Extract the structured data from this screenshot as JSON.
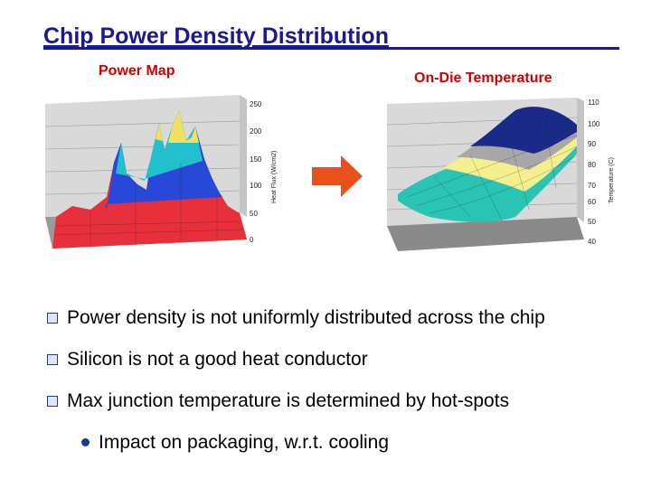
{
  "slide": {
    "title": "Chip Power Density Distribution"
  },
  "left_figure": {
    "caption": "Power Map",
    "axis_title": "Heat Flux (W/cm2)",
    "ticks": [
      "250",
      "200",
      "150",
      "100",
      "50",
      "0"
    ]
  },
  "right_figure": {
    "caption": "On-Die Temperature",
    "axis_title": "Temperature (C)",
    "ticks": [
      "110",
      "100",
      "90",
      "80",
      "70",
      "60",
      "50",
      "40"
    ]
  },
  "colors": {
    "title": "#1a1a8c",
    "caption": "#cc0000",
    "arrow": "#e8501c"
  },
  "bullets": [
    {
      "text": "Power density is not uniformly distributed across the chip"
    },
    {
      "text": "Silicon is not a good heat conductor"
    },
    {
      "text": "Max junction temperature is determined by hot-spots"
    }
  ],
  "sub_bullets": [
    {
      "text": "Impact on packaging, w.r.t. cooling"
    }
  ]
}
